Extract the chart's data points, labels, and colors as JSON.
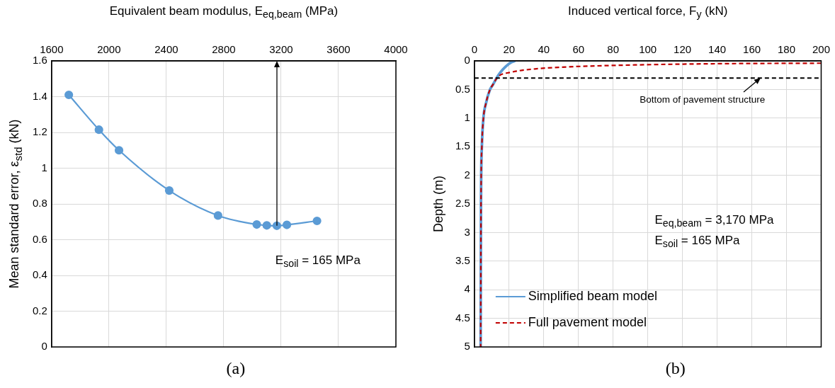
{
  "chart_data": [
    {
      "type": "line",
      "xlabel": "Equivalent beam modulus, E$_{eq,beam}$ (MPa)",
      "ylabel": "Mean standard error, ε$_{std}$ (kN)",
      "x": [
        1720,
        1930,
        2070,
        2420,
        2760,
        3030,
        3100,
        3170,
        3240,
        3450
      ],
      "values": [
        1.41,
        1.215,
        1.1,
        0.875,
        0.735,
        0.685,
        0.68,
        0.678,
        0.683,
        0.705
      ],
      "color": "#5b9bd5",
      "marker": "circle",
      "xlim": [
        1600,
        4000
      ],
      "xticks": [
        1600,
        2000,
        2400,
        2800,
        3200,
        3600,
        4000
      ],
      "ylim": [
        0,
        1.6
      ],
      "yticks": [
        0,
        0.2,
        0.4,
        0.6,
        0.8,
        1,
        1.2,
        1.4,
        1.6
      ],
      "grid": true,
      "annotations": [
        "E$_{soil}$ = 165 MPa",
        "(a)"
      ]
    },
    {
      "type": "line",
      "xlabel": "Induced vertical force, F$_{y}$ (kN)",
      "ylabel": "Depth (m)",
      "series": [
        {
          "name": "Simplified beam model",
          "color": "#5b9bd5",
          "line_style": "solid",
          "x": [
            23.5,
            21,
            18,
            15,
            12.8,
            10.6,
            9,
            6.6,
            5.2,
            4.3,
            3.8,
            3.6
          ],
          "values": [
            0,
            0.03,
            0.1,
            0.2,
            0.3,
            0.42,
            0.5,
            0.75,
            1,
            1.5,
            2.5,
            5
          ]
        },
        {
          "name": "Full pavement model",
          "color": "#c00000",
          "line_style": "dashed",
          "x": [
            200,
            137,
            79,
            50,
            35,
            21,
            13.5,
            10.6,
            9,
            6.6,
            5.2,
            4.3,
            3.8,
            3.6
          ],
          "values": [
            0.04,
            0.05,
            0.08,
            0.11,
            0.14,
            0.2,
            0.28,
            0.42,
            0.5,
            0.75,
            1,
            1.5,
            2.5,
            5
          ]
        }
      ],
      "marker": "none",
      "xlim": [
        0,
        200
      ],
      "xticks": [
        0,
        20,
        40,
        60,
        80,
        100,
        120,
        140,
        160,
        180,
        200
      ],
      "ylim": [
        5,
        0
      ],
      "yticks": [
        0,
        0.5,
        1,
        1.5,
        2,
        2.5,
        3,
        3.5,
        4,
        4.5,
        5
      ],
      "grid": true,
      "legend": "bottom left",
      "ref_lines": [
        {
          "axis": "y",
          "value": 0.3,
          "color": "#000000",
          "line_style": "dashed"
        }
      ],
      "annotations": [
        {
          "text": "Bottom of pavement structure",
          "x": 165,
          "y": 0.3
        },
        "E$_{eq,beam}$ = 3,170 MPa",
        "E$_{soil}$ = 165 MPa",
        "(b)"
      ]
    }
  ]
}
